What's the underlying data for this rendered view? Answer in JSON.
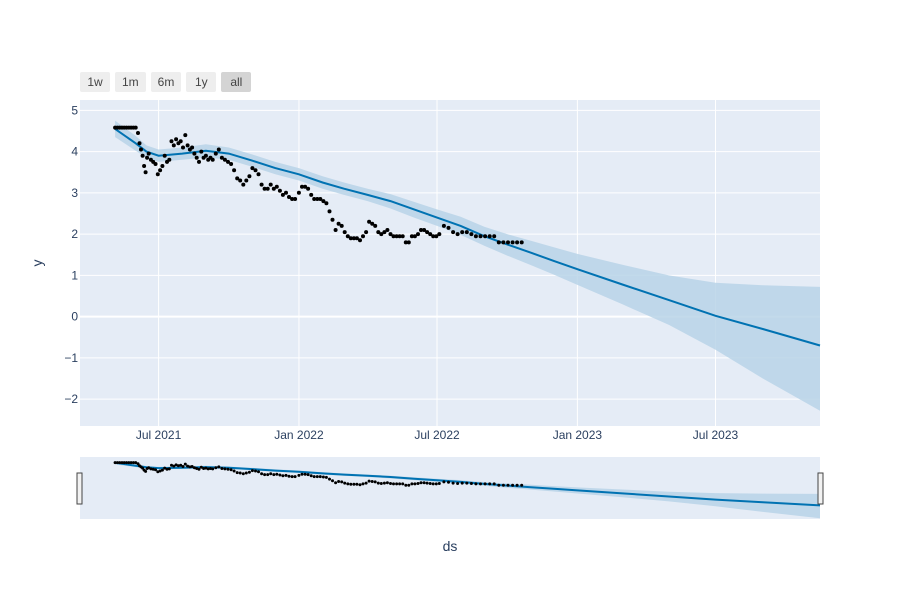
{
  "range_selector": {
    "buttons": [
      {
        "label": "1w",
        "active": false
      },
      {
        "label": "1m",
        "active": false
      },
      {
        "label": "6m",
        "active": false
      },
      {
        "label": "1y",
        "active": false
      },
      {
        "label": "all",
        "active": true
      }
    ]
  },
  "colors": {
    "plot_background": "#e5ecf6",
    "grid": "#ffffff",
    "forecast_line": "#0072b2",
    "uncertainty_band": "#b8d4e8",
    "observations": "#000000",
    "axis_text": "#2a3f5f"
  },
  "chart_data": {
    "type": "line",
    "xlabel": "ds",
    "ylabel": "y",
    "x_range": [
      "2021-03-20",
      "2023-11-15"
    ],
    "ylim": [
      -2.65,
      5.25
    ],
    "x_ticks": [
      {
        "date": "2021-07-01",
        "label": "Jul 2021"
      },
      {
        "date": "2022-01-01",
        "label": "Jan 2022"
      },
      {
        "date": "2022-07-01",
        "label": "Jul 2022"
      },
      {
        "date": "2023-01-01",
        "label": "Jan 2023"
      },
      {
        "date": "2023-07-01",
        "label": "Jul 2023"
      }
    ],
    "y_ticks": [
      {
        "value": 5,
        "label": "5"
      },
      {
        "value": 4,
        "label": "4"
      },
      {
        "value": 3,
        "label": "3"
      },
      {
        "value": 2,
        "label": "2"
      },
      {
        "value": 1,
        "label": "1"
      },
      {
        "value": 0,
        "label": "0"
      },
      {
        "value": -1,
        "label": "−1"
      },
      {
        "value": -2,
        "label": "−2"
      }
    ],
    "grid": true,
    "legend": "none",
    "rangeslider": true,
    "forecast": {
      "x": [
        "2021-05-05",
        "2021-06-01",
        "2021-06-15",
        "2021-07-01",
        "2021-08-01",
        "2021-09-01",
        "2021-10-01",
        "2021-11-01",
        "2021-12-01",
        "2022-01-01",
        "2022-02-01",
        "2022-03-01",
        "2022-04-01",
        "2022-05-01",
        "2022-06-01",
        "2022-07-01",
        "2022-08-01",
        "2022-09-01",
        "2022-10-01",
        "2022-11-01",
        "2022-12-01",
        "2023-01-01",
        "2023-03-01",
        "2023-05-01",
        "2023-07-01",
        "2023-09-01",
        "2023-11-15"
      ],
      "yhat": [
        4.55,
        4.2,
        4.0,
        3.9,
        3.95,
        4.02,
        3.95,
        3.78,
        3.6,
        3.45,
        3.25,
        3.1,
        2.95,
        2.8,
        2.6,
        2.4,
        2.2,
        1.95,
        1.75,
        1.55,
        1.35,
        1.15,
        0.78,
        0.4,
        0.02,
        -0.3,
        -0.7
      ],
      "yhat_lower": [
        4.35,
        4.02,
        3.85,
        3.75,
        3.8,
        3.86,
        3.8,
        3.63,
        3.45,
        3.3,
        3.1,
        2.95,
        2.8,
        2.62,
        2.4,
        2.2,
        1.98,
        1.72,
        1.48,
        1.25,
        1.02,
        0.77,
        0.3,
        -0.2,
        -0.8,
        -1.5,
        -2.28
      ],
      "yhat_upper": [
        4.75,
        4.38,
        4.15,
        4.05,
        4.1,
        4.18,
        4.1,
        3.93,
        3.75,
        3.6,
        3.4,
        3.25,
        3.1,
        2.97,
        2.78,
        2.6,
        2.42,
        2.18,
        2.0,
        1.84,
        1.68,
        1.52,
        1.26,
        1.0,
        0.82,
        0.76,
        0.72
      ]
    },
    "observations": {
      "x": [
        "2021-05-05",
        "2021-05-08",
        "2021-05-11",
        "2021-05-14",
        "2021-05-17",
        "2021-05-20",
        "2021-05-23",
        "2021-05-26",
        "2021-05-29",
        "2021-06-01",
        "2021-06-04",
        "2021-06-06",
        "2021-06-08",
        "2021-06-10",
        "2021-06-12",
        "2021-06-14",
        "2021-06-16",
        "2021-06-18",
        "2021-06-21",
        "2021-06-24",
        "2021-06-27",
        "2021-06-30",
        "2021-07-03",
        "2021-07-06",
        "2021-07-09",
        "2021-07-12",
        "2021-07-15",
        "2021-07-18",
        "2021-07-21",
        "2021-07-24",
        "2021-07-27",
        "2021-07-30",
        "2021-08-02",
        "2021-08-05",
        "2021-08-08",
        "2021-08-11",
        "2021-08-14",
        "2021-08-17",
        "2021-08-20",
        "2021-08-23",
        "2021-08-26",
        "2021-08-29",
        "2021-09-01",
        "2021-09-04",
        "2021-09-07",
        "2021-09-10",
        "2021-09-14",
        "2021-09-18",
        "2021-09-22",
        "2021-09-26",
        "2021-09-30",
        "2021-10-04",
        "2021-10-08",
        "2021-10-12",
        "2021-10-16",
        "2021-10-20",
        "2021-10-24",
        "2021-10-28",
        "2021-11-01",
        "2021-11-05",
        "2021-11-09",
        "2021-11-13",
        "2021-11-17",
        "2021-11-21",
        "2021-11-25",
        "2021-11-29",
        "2021-12-03",
        "2021-12-07",
        "2021-12-11",
        "2021-12-15",
        "2021-12-19",
        "2021-12-23",
        "2021-12-27",
        "2022-01-01",
        "2022-01-05",
        "2022-01-09",
        "2022-01-13",
        "2022-01-17",
        "2022-01-21",
        "2022-01-25",
        "2022-01-29",
        "2022-02-02",
        "2022-02-06",
        "2022-02-10",
        "2022-02-14",
        "2022-02-18",
        "2022-02-22",
        "2022-02-26",
        "2022-03-02",
        "2022-03-06",
        "2022-03-10",
        "2022-03-14",
        "2022-03-18",
        "2022-03-22",
        "2022-03-26",
        "2022-03-30",
        "2022-04-03",
        "2022-04-07",
        "2022-04-11",
        "2022-04-15",
        "2022-04-19",
        "2022-04-23",
        "2022-04-27",
        "2022-05-01",
        "2022-05-05",
        "2022-05-09",
        "2022-05-13",
        "2022-05-17",
        "2022-05-21",
        "2022-05-25",
        "2022-05-29",
        "2022-06-02",
        "2022-06-06",
        "2022-06-10",
        "2022-06-14",
        "2022-06-18",
        "2022-06-22",
        "2022-06-26",
        "2022-06-30",
        "2022-07-04",
        "2022-07-10",
        "2022-07-16",
        "2022-07-22",
        "2022-07-28",
        "2022-08-03",
        "2022-08-09",
        "2022-08-15",
        "2022-08-21",
        "2022-08-27",
        "2022-09-02",
        "2022-09-08",
        "2022-09-14",
        "2022-09-20",
        "2022-09-26",
        "2022-10-02",
        "2022-10-08",
        "2022-10-14",
        "2022-10-20"
      ],
      "y": [
        4.58,
        4.58,
        4.58,
        4.58,
        4.58,
        4.58,
        4.58,
        4.58,
        4.58,
        4.58,
        4.45,
        4.2,
        4.05,
        3.9,
        3.65,
        3.5,
        3.85,
        3.95,
        3.8,
        3.75,
        3.7,
        3.45,
        3.55,
        3.65,
        3.9,
        3.75,
        3.8,
        4.25,
        4.15,
        4.3,
        4.2,
        4.25,
        4.1,
        4.4,
        4.15,
        4.05,
        4.1,
        3.95,
        3.85,
        3.75,
        4.0,
        3.85,
        3.9,
        3.8,
        3.85,
        3.8,
        3.95,
        4.05,
        3.85,
        3.8,
        3.75,
        3.7,
        3.55,
        3.35,
        3.3,
        3.2,
        3.3,
        3.4,
        3.6,
        3.55,
        3.45,
        3.2,
        3.1,
        3.1,
        3.2,
        3.1,
        3.15,
        3.05,
        2.95,
        3.0,
        2.9,
        2.85,
        2.85,
        3.0,
        3.15,
        3.15,
        3.1,
        2.95,
        2.85,
        2.85,
        2.85,
        2.8,
        2.75,
        2.55,
        2.35,
        2.1,
        2.25,
        2.2,
        2.05,
        1.95,
        1.9,
        1.9,
        1.9,
        1.85,
        1.95,
        2.05,
        2.3,
        2.25,
        2.2,
        2.05,
        2.0,
        2.05,
        2.1,
        2.0,
        1.95,
        1.95,
        1.95,
        1.95,
        1.8,
        1.8,
        1.95,
        1.95,
        2.0,
        2.1,
        2.1,
        2.05,
        2.0,
        1.95,
        1.95,
        2.0,
        2.2,
        2.15,
        2.05,
        2.0,
        2.05,
        2.05,
        2.0,
        1.95,
        1.95,
        1.95,
        1.95,
        1.95,
        1.8,
        1.8,
        1.8,
        1.8,
        1.8,
        1.8
      ]
    }
  }
}
